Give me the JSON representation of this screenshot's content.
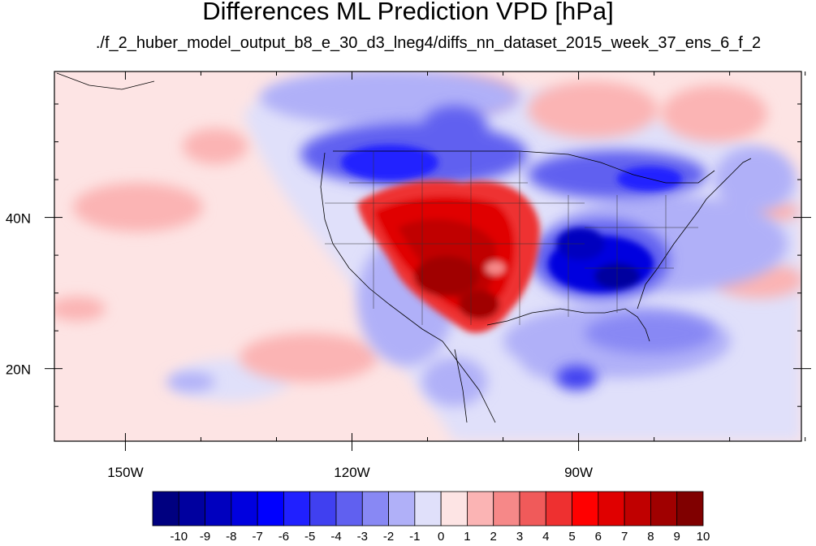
{
  "title": "Differences ML Prediction VPD [hPa]",
  "subtitle": "./f_2_huber_model_output_b8_e_30_d3_lneg4/diffs_nn_dataset_2015_week_37_ens_6_f_2",
  "axes": {
    "lon_ticks": [
      {
        "value": -150,
        "label": "150W"
      },
      {
        "value": -120,
        "label": "120W"
      },
      {
        "value": -90,
        "label": "90W"
      }
    ],
    "lat_ticks": [
      {
        "value": 40,
        "label": "40N"
      },
      {
        "value": 20,
        "label": "20N"
      }
    ],
    "lon_range": [
      -159.4,
      -60.5
    ],
    "lat_range": [
      10.4,
      59.3
    ]
  },
  "colorbar": {
    "labels": [
      "-10",
      "-9",
      "-8",
      "-7",
      "-6",
      "-5",
      "-4",
      "-3",
      "-2",
      "-1",
      "0",
      "1",
      "2",
      "3",
      "4",
      "5",
      "6",
      "7",
      "8",
      "9",
      "10"
    ],
    "colors": [
      "#000080",
      "#00009f",
      "#0000bf",
      "#0000df",
      "#0000ff",
      "#2020ff",
      "#4040f0",
      "#6060f0",
      "#8888f4",
      "#b0b0f8",
      "#e0e0fa",
      "#fde4e4",
      "#fbb4b4",
      "#f68888",
      "#f05a5a",
      "#ee3030",
      "#ff0000",
      "#e00000",
      "#c00000",
      "#a00000",
      "#800000"
    ]
  },
  "field_anomalies": [
    {
      "name": "central-us-positive",
      "lon": -108,
      "lat": 35,
      "value": 8
    },
    {
      "name": "southern-plains-positive",
      "lon": -104,
      "lat": 30,
      "value": 8
    },
    {
      "name": "southeast-us-negative",
      "lon": -87,
      "lat": 34,
      "value": -7
    },
    {
      "name": "northern-plains-negative",
      "lon": -108,
      "lat": 48,
      "value": -4
    },
    {
      "name": "great-lakes-negative",
      "lon": -88,
      "lat": 46,
      "value": -4
    },
    {
      "name": "canada-negative",
      "lon": -105,
      "lat": 54,
      "value": -3
    },
    {
      "name": "gulf-negative",
      "lon": -85,
      "lat": 25,
      "value": -3
    },
    {
      "name": "atlantic-negative",
      "lon": -72,
      "lat": 38,
      "value": -2
    },
    {
      "name": "north-atlantic-positive",
      "lon": -68,
      "lat": 54,
      "value": 2
    },
    {
      "name": "pacific-positive-1",
      "lon": -140,
      "lat": 43,
      "value": 2
    },
    {
      "name": "pacific-positive-2",
      "lon": -132,
      "lat": 21,
      "value": 2
    },
    {
      "name": "atlantic-positive",
      "lon": -64,
      "lat": 33,
      "value": 2
    }
  ]
}
